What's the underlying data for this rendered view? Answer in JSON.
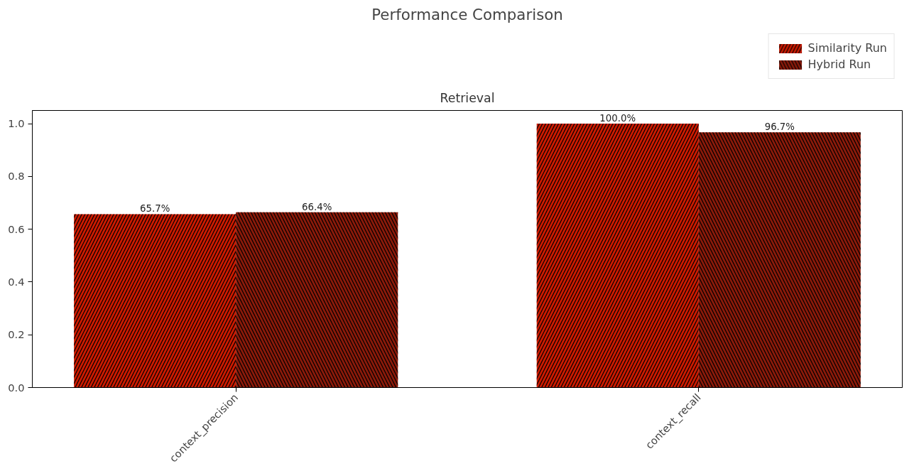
{
  "chart_data": {
    "type": "bar",
    "title": "Performance Comparison",
    "subtitle": "Retrieval",
    "categories": [
      "context_precision",
      "context_recall"
    ],
    "series": [
      {
        "name": "Similarity Run",
        "color": "#cc1a00",
        "values": [
          0.657,
          1.0
        ],
        "value_labels": [
          "65.7%",
          "100.0%"
        ]
      },
      {
        "name": "Hybrid Run",
        "color": "#8b1a0a",
        "values": [
          0.664,
          0.967
        ],
        "value_labels": [
          "66.4%",
          "96.7%"
        ]
      }
    ],
    "ylim": [
      0,
      1.05
    ],
    "yticks": [
      {
        "value": 0,
        "label": "0.0"
      },
      {
        "value": 0.2,
        "label": "0.2"
      },
      {
        "value": 0.4,
        "label": "0.4"
      },
      {
        "value": 0.6,
        "label": "0.6"
      },
      {
        "value": 0.8,
        "label": "0.8"
      },
      {
        "value": 1.0,
        "label": "1.0"
      }
    ],
    "grid": false,
    "legend": "top right"
  }
}
